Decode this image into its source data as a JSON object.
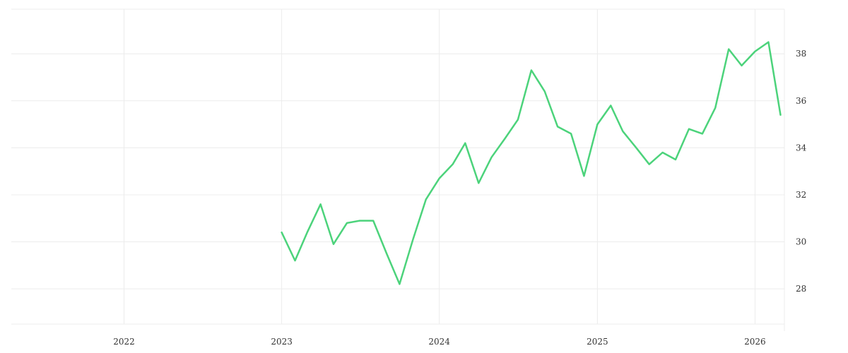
{
  "chart_data": {
    "type": "line",
    "title": "",
    "xlabel": "",
    "ylabel": "",
    "x_axis": {
      "type": "date",
      "range": [
        "2021-04-15",
        "2026-03-10"
      ],
      "ticks": [
        {
          "value": "2022-01-01",
          "label": "2022"
        },
        {
          "value": "2023-01-01",
          "label": "2023"
        },
        {
          "value": "2024-01-01",
          "label": "2024"
        },
        {
          "value": "2025-01-01",
          "label": "2025"
        },
        {
          "value": "2026-01-01",
          "label": "2026"
        }
      ]
    },
    "y_axis": {
      "position": "right",
      "range": [
        26.5,
        39.9
      ],
      "ticks": [
        28,
        30,
        32,
        34,
        36,
        38
      ]
    },
    "grid": true,
    "legend": "none",
    "series": [
      {
        "color": "#4cd37b",
        "points": [
          {
            "x": "2023-01-01",
            "y": 30.4
          },
          {
            "x": "2023-02-01",
            "y": 29.2
          },
          {
            "x": "2023-03-01",
            "y": 30.4
          },
          {
            "x": "2023-04-01",
            "y": 31.6
          },
          {
            "x": "2023-05-01",
            "y": 29.9
          },
          {
            "x": "2023-06-01",
            "y": 30.8
          },
          {
            "x": "2023-07-01",
            "y": 30.9
          },
          {
            "x": "2023-08-01",
            "y": 30.9
          },
          {
            "x": "2023-09-01",
            "y": 29.5
          },
          {
            "x": "2023-10-01",
            "y": 28.2
          },
          {
            "x": "2023-11-01",
            "y": 30.1
          },
          {
            "x": "2023-12-01",
            "y": 31.8
          },
          {
            "x": "2024-01-01",
            "y": 32.7
          },
          {
            "x": "2024-02-01",
            "y": 33.3
          },
          {
            "x": "2024-03-01",
            "y": 34.2
          },
          {
            "x": "2024-04-01",
            "y": 32.5
          },
          {
            "x": "2024-05-01",
            "y": 33.6
          },
          {
            "x": "2024-06-01",
            "y": 34.4
          },
          {
            "x": "2024-07-01",
            "y": 35.2
          },
          {
            "x": "2024-08-01",
            "y": 37.3
          },
          {
            "x": "2024-09-01",
            "y": 36.4
          },
          {
            "x": "2024-10-01",
            "y": 34.9
          },
          {
            "x": "2024-11-01",
            "y": 34.6
          },
          {
            "x": "2024-12-01",
            "y": 32.8
          },
          {
            "x": "2025-01-01",
            "y": 35.0
          },
          {
            "x": "2025-02-01",
            "y": 35.8
          },
          {
            "x": "2025-03-01",
            "y": 34.7
          },
          {
            "x": "2025-04-01",
            "y": 34.0
          },
          {
            "x": "2025-05-01",
            "y": 33.3
          },
          {
            "x": "2025-06-01",
            "y": 33.8
          },
          {
            "x": "2025-07-01",
            "y": 33.5
          },
          {
            "x": "2025-08-01",
            "y": 34.8
          },
          {
            "x": "2025-09-01",
            "y": 34.6
          },
          {
            "x": "2025-10-01",
            "y": 35.7
          },
          {
            "x": "2025-11-01",
            "y": 38.2
          },
          {
            "x": "2025-12-01",
            "y": 37.5
          },
          {
            "x": "2026-01-01",
            "y": 38.1
          },
          {
            "x": "2026-02-01",
            "y": 38.5
          },
          {
            "x": "2026-03-01",
            "y": 35.4
          }
        ]
      }
    ]
  }
}
